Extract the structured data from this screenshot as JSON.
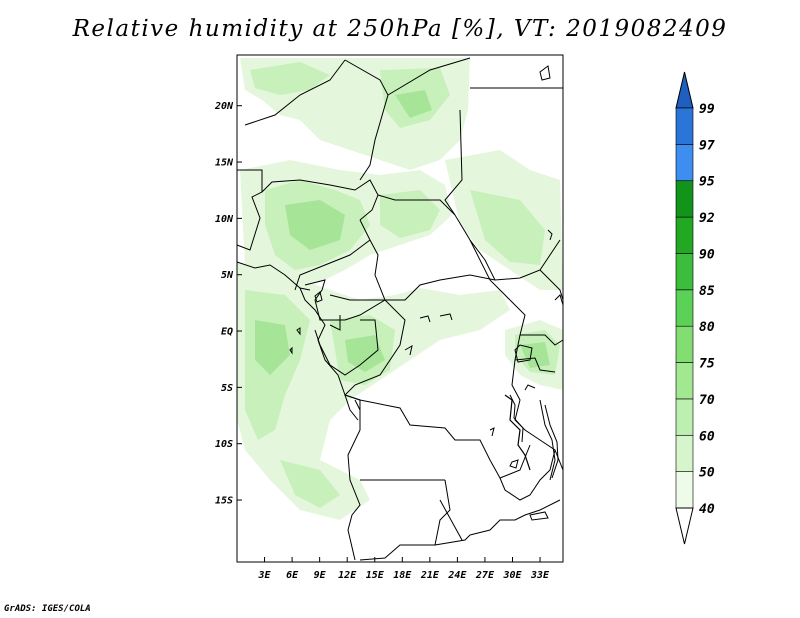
{
  "title": "Relative humidity at 250hPa [%], VT: 2019082409",
  "credit": "GrADS: IGES/COLA",
  "map": {
    "lon_range": [
      0,
      35.5
    ],
    "lat_range": [
      -20.5,
      24.5
    ],
    "lon_ticks": [
      {
        "value": 3,
        "label": "3E"
      },
      {
        "value": 6,
        "label": "6E"
      },
      {
        "value": 9,
        "label": "9E"
      },
      {
        "value": 12,
        "label": "12E"
      },
      {
        "value": 15,
        "label": "15E"
      },
      {
        "value": 18,
        "label": "18E"
      },
      {
        "value": 21,
        "label": "21E"
      },
      {
        "value": 24,
        "label": "24E"
      },
      {
        "value": 27,
        "label": "27E"
      },
      {
        "value": 30,
        "label": "30E"
      },
      {
        "value": 33,
        "label": "33E"
      }
    ],
    "lat_ticks": [
      {
        "value": 20,
        "label": "20N"
      },
      {
        "value": 15,
        "label": "15N"
      },
      {
        "value": 10,
        "label": "10N"
      },
      {
        "value": 5,
        "label": "5N"
      },
      {
        "value": 0,
        "label": "EQ"
      },
      {
        "value": -5,
        "label": "5S"
      },
      {
        "value": -10,
        "label": "10S"
      },
      {
        "value": -15,
        "label": "15S"
      }
    ]
  },
  "colorbar": {
    "levels": [
      {
        "label": "40",
        "color": "#eefbe8"
      },
      {
        "label": "50",
        "color": "#d6f5cc"
      },
      {
        "label": "60",
        "color": "#bdefb0"
      },
      {
        "label": "70",
        "color": "#a2e891"
      },
      {
        "label": "75",
        "color": "#82de72"
      },
      {
        "label": "80",
        "color": "#5cd157"
      },
      {
        "label": "85",
        "color": "#3cbe3c"
      },
      {
        "label": "90",
        "color": "#23a823"
      },
      {
        "label": "92",
        "color": "#12941a"
      },
      {
        "label": "95",
        "color": "#3d8ef0"
      },
      {
        "label": "97",
        "color": "#2a75d8"
      },
      {
        "label": "99",
        "color": ""
      }
    ],
    "top_color": "#1f5fbf",
    "bottom_color": "#ffffff"
  },
  "colors": {
    "land_line": "#000000",
    "shade_light": "#e4f7dc",
    "shade_mid": "#c8f0bb",
    "shade_dark": "#a6e597"
  }
}
